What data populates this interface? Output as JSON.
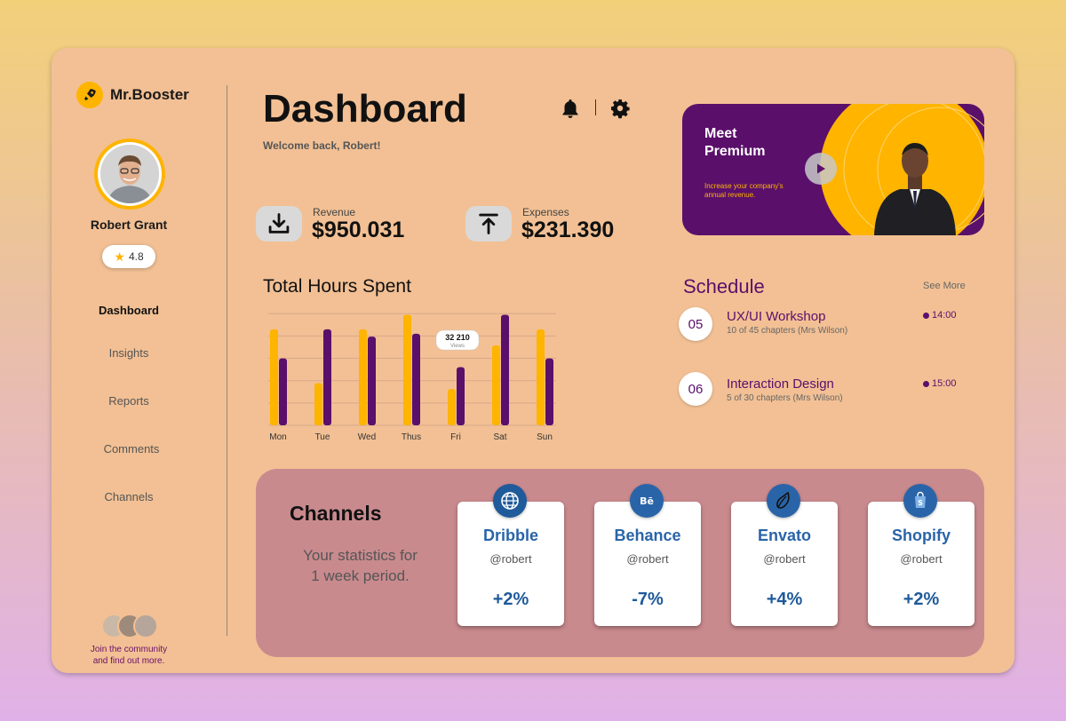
{
  "brand": {
    "name": "Mr.Booster",
    "icon": "rocket-icon"
  },
  "user": {
    "name": "Robert Grant",
    "rating": "4.8"
  },
  "nav": {
    "items": [
      {
        "label": "Dashboard",
        "active": true
      },
      {
        "label": "Insights",
        "active": false
      },
      {
        "label": "Reports",
        "active": false
      },
      {
        "label": "Comments",
        "active": false
      },
      {
        "label": "Channels",
        "active": false
      }
    ]
  },
  "community": {
    "line1": "Join the community",
    "line2": "and find out more."
  },
  "header": {
    "title": "Dashboard",
    "welcome": "Welcome back, Robert!"
  },
  "stats": {
    "revenue": {
      "label": "Revenue",
      "value": "$950.031",
      "icon": "download-icon"
    },
    "expenses": {
      "label": "Expenses",
      "value": "$231.390",
      "icon": "upload-icon"
    }
  },
  "premium": {
    "title_line1": "Meet",
    "title_line2": "Premium",
    "subtitle_line1": "Increase your company's",
    "subtitle_line2": "annual revenue."
  },
  "chart_data": {
    "type": "bar",
    "title": "Total Hours Spent",
    "categories": [
      "Mon",
      "Tue",
      "Wed",
      "Thus",
      "Fri",
      "Sat",
      "Sun"
    ],
    "series": [
      {
        "color": "#ffb400",
        "values": [
          66,
          29,
          66,
          76,
          25,
          55,
          66
        ]
      },
      {
        "color": "#5a0f6b",
        "values": [
          46,
          66,
          61,
          63,
          40,
          76,
          46
        ]
      }
    ],
    "ylim": [
      0,
      80
    ],
    "grid": true,
    "tooltip": {
      "value": "32 210",
      "label": "Views",
      "category": "Fri"
    }
  },
  "schedule": {
    "title": "Schedule",
    "see_more": "See More",
    "items": [
      {
        "num": "05",
        "name": "UX/UI Workshop",
        "sub": "10 of 45 chapters (Mrs Wilson)",
        "time": "14:00"
      },
      {
        "num": "06",
        "name": "Interaction Design",
        "sub": "5 of 30 chapters (Mrs Wilson)",
        "time": "15:00"
      }
    ]
  },
  "channels": {
    "title": "Channels",
    "subtitle_line1": "Your statistics for",
    "subtitle_line2": "1 week period.",
    "cards": [
      {
        "name": "Dribble",
        "handle": "@robert",
        "change": "+2%",
        "icon": "globe-icon",
        "icon_color": "#1f5a9a"
      },
      {
        "name": "Behance",
        "handle": "@robert",
        "change": "-7%",
        "icon": "behance-icon",
        "icon_color": "#2a64a8"
      },
      {
        "name": "Envato",
        "handle": "@robert",
        "change": "+4%",
        "icon": "leaf-icon",
        "icon_color": "#2a64a8"
      },
      {
        "name": "Shopify",
        "handle": "@robert",
        "change": "+2%",
        "icon": "shopping-bag-icon",
        "icon_color": "#2a64a8"
      }
    ]
  }
}
